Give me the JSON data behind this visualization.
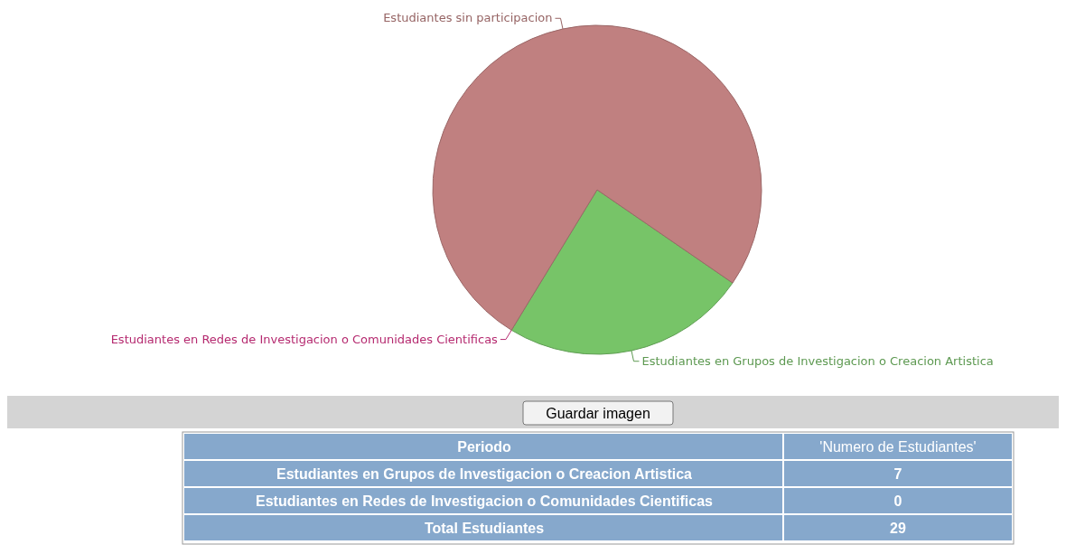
{
  "chart_data": {
    "type": "pie",
    "categories": [
      "Estudiantes en Grupos de Investigacion o Creacion Artistica",
      "Estudiantes en Redes de Investigacion o Comunidades Cientificas",
      "Estudiantes sin participacion"
    ],
    "values": [
      24.14,
      0,
      75.86
    ],
    "colors": [
      "#77c468",
      "#e8358f",
      "#c08080"
    ],
    "annotations": [
      "Periodo",
      "'Numero de Estudiantes'",
      "Estudiantes en Grupos de Investigacion o Creacion Artistica",
      "7",
      "Estudiantes en Redes de Investigacion o Comunidades Cientificas",
      "0",
      "Total Estudiantes",
      "29",
      "Guardar imagen"
    ]
  }
}
